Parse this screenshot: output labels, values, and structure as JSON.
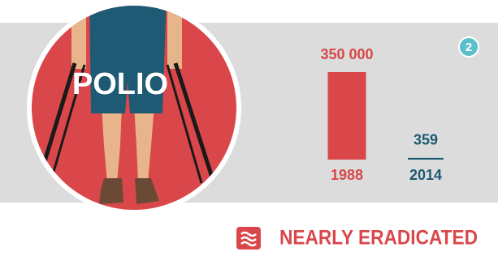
{
  "chart_data": {
    "type": "bar",
    "title": "POLIO",
    "badge": "2",
    "categories": [
      "1988",
      "2014"
    ],
    "values": [
      350000,
      359
    ],
    "value_labels": [
      "350 000",
      "359"
    ],
    "colors": [
      "#d9474a",
      "#1e5a73"
    ],
    "footer": "NEARLY ERADICATED"
  }
}
